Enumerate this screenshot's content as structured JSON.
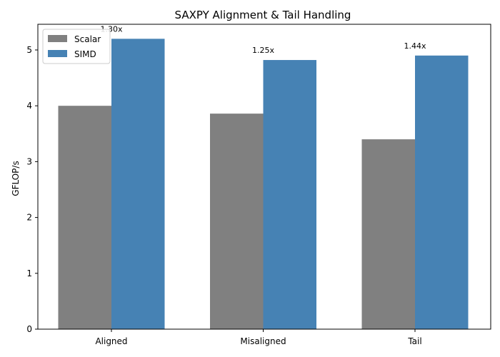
{
  "chart_data": {
    "type": "bar",
    "title": "SAXPY Alignment & Tail Handling",
    "xlabel": "",
    "ylabel": "GFLOP/s",
    "categories": [
      "Aligned",
      "Misaligned",
      "Tail"
    ],
    "series": [
      {
        "name": "Scalar",
        "values": [
          4.0,
          3.86,
          3.4
        ],
        "color": "#808080"
      },
      {
        "name": "SIMD",
        "values": [
          5.2,
          4.82,
          4.9
        ],
        "color": "#4682b4"
      }
    ],
    "annotations": [
      "1.30x",
      "1.25x",
      "1.44x"
    ],
    "ylim": [
      0,
      5.46
    ],
    "yticks": [
      "0",
      "1",
      "2",
      "3",
      "4",
      "5"
    ],
    "grid": false,
    "legend_position": "top-left"
  }
}
